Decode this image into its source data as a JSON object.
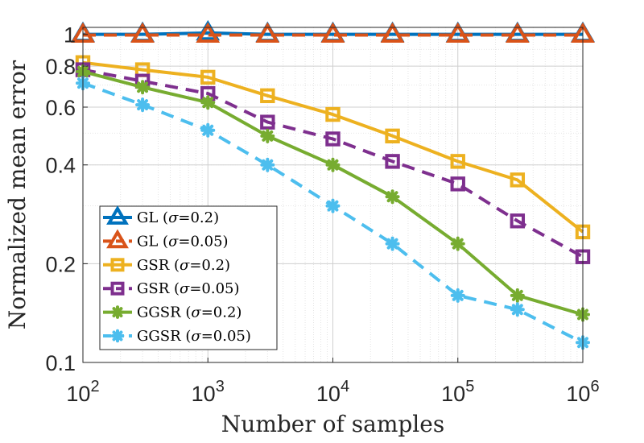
{
  "chart_data": {
    "type": "line",
    "xlabel": "Number of samples",
    "ylabel": "Normalized mean error",
    "xscale": "log",
    "yscale": "log",
    "xlim": [
      100,
      1000000
    ],
    "ylim": [
      0.1,
      1.05
    ],
    "grid": true,
    "legend_position": "bottom-left",
    "x_ticks": [
      {
        "value": 100,
        "base": "10",
        "exp": "2"
      },
      {
        "value": 1000,
        "base": "10",
        "exp": "3"
      },
      {
        "value": 10000,
        "base": "10",
        "exp": "4"
      },
      {
        "value": 100000,
        "base": "10",
        "exp": "5"
      },
      {
        "value": 1000000,
        "base": "10",
        "exp": "6"
      }
    ],
    "y_ticks": [
      {
        "value": 0.1,
        "label": "0.1"
      },
      {
        "value": 0.2,
        "label": "0.2"
      },
      {
        "value": 0.4,
        "label": "0.4"
      },
      {
        "value": 0.6,
        "label": "0.6"
      },
      {
        "value": 0.8,
        "label": "0.8"
      },
      {
        "value": 1,
        "label": "1"
      }
    ],
    "x": [
      100,
      300,
      1000,
      3000,
      10000,
      30000,
      100000,
      300000,
      1000000
    ],
    "series": [
      {
        "name": "GL (σ=0.2)",
        "legend_prefix": "GL (",
        "legend_suffix": "=0.2)",
        "color": "#0072BD",
        "dash": false,
        "marker": "triangle",
        "values": [
          1.0,
          1.0,
          1.01,
          1.0,
          1.0,
          1.0,
          1.0,
          1.0,
          1.0
        ]
      },
      {
        "name": "GL (σ=0.05)",
        "legend_prefix": "GL (",
        "legend_suffix": "=0.05)",
        "color": "#D95319",
        "dash": true,
        "marker": "triangle",
        "values": [
          0.995,
          0.995,
          0.995,
          0.995,
          0.995,
          0.995,
          0.995,
          0.995,
          0.995
        ]
      },
      {
        "name": "GSR (σ=0.2)",
        "legend_prefix": "GSR (",
        "legend_suffix": "=0.2)",
        "color": "#EDB120",
        "dash": false,
        "marker": "square",
        "values": [
          0.82,
          0.78,
          0.74,
          0.65,
          0.57,
          0.49,
          0.41,
          0.36,
          0.25
        ]
      },
      {
        "name": "GSR (σ=0.05)",
        "legend_prefix": "GSR (",
        "legend_suffix": "=0.05)",
        "color": "#7E2F8E",
        "dash": true,
        "marker": "square",
        "values": [
          0.78,
          0.72,
          0.66,
          0.54,
          0.48,
          0.41,
          0.35,
          0.27,
          0.21
        ]
      },
      {
        "name": "GGSR (σ=0.2)",
        "legend_prefix": "GGSR (",
        "legend_suffix": "=0.2)",
        "color": "#77AC30",
        "dash": false,
        "marker": "star",
        "values": [
          0.77,
          0.69,
          0.62,
          0.49,
          0.4,
          0.32,
          0.23,
          0.16,
          0.14
        ]
      },
      {
        "name": "GGSR (σ=0.05)",
        "legend_prefix": "GGSR (",
        "legend_suffix": "=0.05)",
        "color": "#4DBEEE",
        "dash": true,
        "marker": "star",
        "values": [
          0.71,
          0.61,
          0.51,
          0.4,
          0.3,
          0.23,
          0.16,
          0.145,
          0.115
        ]
      }
    ]
  }
}
